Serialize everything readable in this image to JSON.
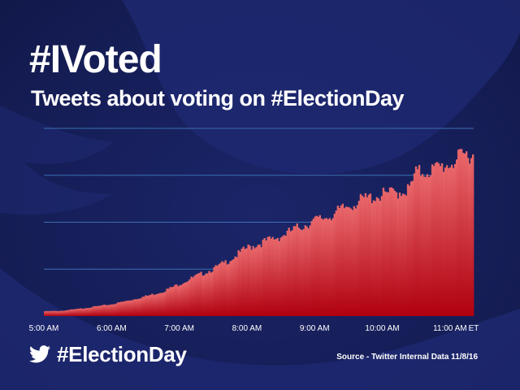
{
  "header": {
    "title": "#IVoted",
    "subtitle": "Tweets about voting on #ElectionDay"
  },
  "footer": {
    "hashtag": "#ElectionDay",
    "source": "Source - Twitter Internal Data 11/8/16"
  },
  "icons": {
    "brand": "twitter-bird-icon"
  },
  "colors": {
    "background": "#17205c",
    "bar_top": "#e8676a",
    "bar_bottom": "#b0000f",
    "gridline": "#3b6fb3",
    "text": "#ffffff"
  },
  "chart_data": {
    "type": "area",
    "title": "Tweets about voting on #ElectionDay",
    "xlabel": "",
    "ylabel": "",
    "x_unit_label": "ET",
    "x_tick_labels": [
      "5:00 AM",
      "6:00 AM",
      "7:00 AM",
      "8:00 AM",
      "9:00 AM",
      "10:00 AM",
      "11:00 AM"
    ],
    "x_tick_hours": [
      5,
      6,
      7,
      8,
      9,
      10,
      11
    ],
    "x_range_hours": [
      5.0,
      11.35
    ],
    "ylim": [
      0,
      4
    ],
    "y_gridlines": [
      1,
      2,
      3,
      4
    ],
    "grid": true,
    "legend": "none",
    "series": [
      {
        "x_hours": [
          5.0,
          5.25,
          5.5,
          5.75,
          6.0,
          6.25,
          6.5,
          6.75,
          7.0,
          7.25,
          7.5,
          7.75,
          8.0,
          8.25,
          8.5,
          8.75,
          9.0,
          9.25,
          9.5,
          9.75,
          10.0,
          10.25,
          10.4,
          10.5,
          10.75,
          11.0,
          11.25,
          11.35
        ],
        "values": [
          0.1,
          0.11,
          0.15,
          0.2,
          0.25,
          0.33,
          0.42,
          0.52,
          0.68,
          0.85,
          1.0,
          1.2,
          1.45,
          1.58,
          1.7,
          1.88,
          2.03,
          2.15,
          2.35,
          2.5,
          2.58,
          2.65,
          2.7,
          3.05,
          3.12,
          3.25,
          3.45,
          3.45
        ]
      }
    ]
  }
}
